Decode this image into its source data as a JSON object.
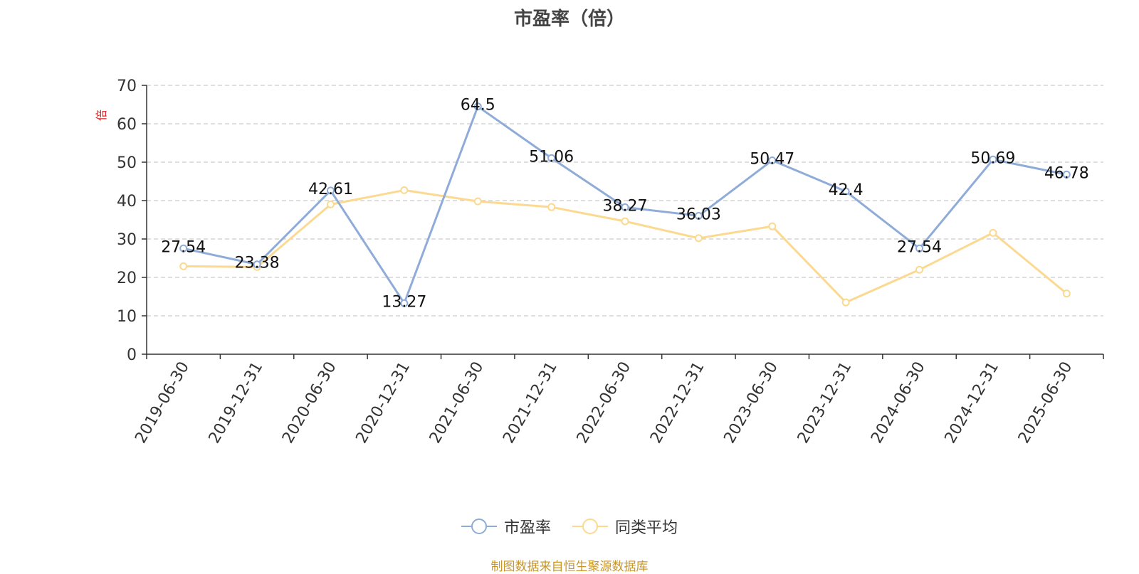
{
  "chart_data": {
    "type": "line",
    "title": "市盈率（倍）",
    "ylabel": "倍",
    "ylim": [
      0,
      70
    ],
    "yticks": [
      0,
      10,
      20,
      30,
      40,
      50,
      60,
      70
    ],
    "grid": true,
    "legend_position": "bottom",
    "categories": [
      "2019-06-30",
      "2019-12-31",
      "2020-06-30",
      "2020-12-31",
      "2021-06-30",
      "2021-12-31",
      "2022-06-30",
      "2022-12-31",
      "2023-06-30",
      "2023-12-31",
      "2024-06-30",
      "2024-12-31",
      "2025-06-30"
    ],
    "series": [
      {
        "name": "市盈率",
        "color": "#8facd8",
        "show_labels": true,
        "values": [
          27.54,
          23.38,
          42.61,
          13.27,
          64.5,
          51.06,
          38.27,
          36.03,
          50.47,
          42.4,
          27.54,
          50.69,
          46.78
        ]
      },
      {
        "name": "同类平均",
        "color": "#fbd990",
        "show_labels": false,
        "values": [
          22.9,
          22.7,
          39.0,
          42.7,
          39.8,
          38.3,
          34.6,
          30.2,
          33.3,
          13.5,
          22.0,
          31.6,
          15.8
        ]
      }
    ]
  },
  "source_note": "制图数据来自恒生聚源数据库"
}
